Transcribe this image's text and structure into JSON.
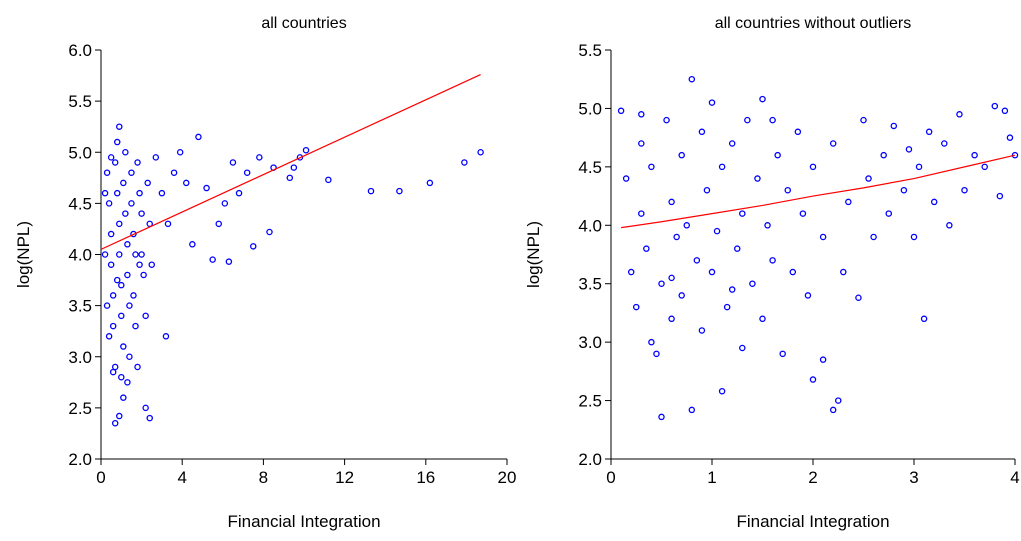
{
  "chart_data": [
    {
      "type": "scatter",
      "title": "all countries",
      "x_label": "Financial Integration",
      "y_label": "log(NPL)",
      "xlim": [
        0,
        20
      ],
      "xticks": [
        0,
        4,
        8,
        12,
        16,
        20
      ],
      "ylim": [
        2,
        6
      ],
      "yticks": [
        {
          "value": 2,
          "label": "2.0"
        },
        {
          "value": 2.5,
          "label": "2.5"
        },
        {
          "value": 3,
          "label": "3.0"
        },
        {
          "value": 3.5,
          "label": "3.5"
        },
        {
          "value": 4,
          "label": "4.0"
        },
        {
          "value": 4.5,
          "label": "4.5"
        },
        {
          "value": 5,
          "label": "5.0"
        },
        {
          "value": 5.5,
          "label": "5.5"
        },
        {
          "value": 6,
          "label": "6.0"
        }
      ],
      "series": [
        {
          "mode": "markers",
          "color": "#0000ff",
          "x": [
            0.3,
            0.4,
            0.5,
            0.5,
            0.6,
            0.6,
            0.7,
            0.7,
            0.8,
            0.8,
            0.9,
            0.9,
            1.0,
            1.0,
            1.1,
            1.1,
            1.2,
            1.2,
            1.3,
            1.3,
            1.4,
            1.4,
            1.5,
            1.5,
            1.6,
            1.6,
            1.7,
            1.8,
            1.8,
            1.9,
            2.0,
            2.1,
            2.2,
            2.3,
            2.4,
            0.4,
            0.6,
            0.9,
            1.0,
            1.3,
            0.2,
            0.3,
            0.2,
            0.7,
            0.9,
            1.1,
            2.2,
            2.4,
            3.2,
            2.5,
            2.7,
            3.0,
            3.3,
            3.6,
            3.9,
            4.2,
            4.5,
            4.8,
            5.2,
            5.5,
            5.8,
            6.3,
            6.1,
            6.5,
            6.8,
            7.2,
            7.5,
            7.8,
            8.3,
            8.5,
            9.3,
            9.5,
            9.8,
            10.1,
            11.2,
            13.3,
            14.7,
            16.2,
            17.9,
            18.7,
            1.7,
            1.9,
            2.0,
            0.5,
            0.8
          ],
          "values": [
            4.8,
            4.5,
            4.2,
            3.9,
            3.6,
            3.3,
            2.9,
            4.9,
            5.1,
            4.6,
            4.3,
            4.0,
            3.7,
            3.4,
            3.1,
            4.7,
            5.0,
            4.4,
            4.1,
            3.8,
            3.5,
            3.0,
            4.8,
            4.5,
            4.2,
            3.6,
            3.3,
            2.9,
            4.9,
            4.6,
            4.0,
            3.8,
            3.4,
            4.7,
            4.3,
            3.2,
            2.85,
            5.25,
            2.8,
            2.75,
            4.0,
            3.5,
            4.6,
            2.35,
            2.42,
            2.6,
            2.5,
            2.4,
            3.2,
            3.9,
            4.95,
            4.6,
            4.3,
            4.8,
            5.0,
            4.7,
            4.1,
            5.15,
            4.65,
            3.95,
            4.3,
            3.93,
            4.5,
            4.9,
            4.6,
            4.8,
            4.08,
            4.95,
            4.22,
            4.85,
            4.75,
            4.85,
            4.95,
            5.02,
            4.73,
            4.62,
            4.62,
            4.7,
            4.9,
            5.0,
            4.0,
            3.9,
            4.4,
            4.95,
            3.75
          ]
        },
        {
          "mode": "lines",
          "color": "#ff0000",
          "x": [
            0,
            18.7
          ],
          "values": [
            4.05,
            5.76
          ]
        }
      ]
    },
    {
      "type": "scatter",
      "title": "all countries without outliers",
      "x_label": "Financial Integration",
      "y_label": "log(NPL)",
      "xlim": [
        0,
        4
      ],
      "xticks": [
        0,
        1,
        2,
        3,
        4
      ],
      "ylim": [
        2,
        5.5
      ],
      "yticks": [
        {
          "value": 2,
          "label": "2.0"
        },
        {
          "value": 2.5,
          "label": "2.5"
        },
        {
          "value": 3,
          "label": "3.0"
        },
        {
          "value": 3.5,
          "label": "3.5"
        },
        {
          "value": 4,
          "label": "4.0"
        },
        {
          "value": 4.5,
          "label": "4.5"
        },
        {
          "value": 5,
          "label": "5.0"
        },
        {
          "value": 5.5,
          "label": "5.5"
        }
      ],
      "series": [
        {
          "mode": "markers",
          "color": "#0000ff",
          "x": [
            0.1,
            0.15,
            0.2,
            0.25,
            0.3,
            0.3,
            0.35,
            0.4,
            0.4,
            0.45,
            0.5,
            0.5,
            0.55,
            0.6,
            0.6,
            0.65,
            0.7,
            0.7,
            0.75,
            0.8,
            0.8,
            0.85,
            0.9,
            0.9,
            0.95,
            1.0,
            1.0,
            1.05,
            1.1,
            1.1,
            1.15,
            1.2,
            1.25,
            1.3,
            1.3,
            1.35,
            1.4,
            1.45,
            1.5,
            1.5,
            1.55,
            1.6,
            1.65,
            1.7,
            1.75,
            1.8,
            1.85,
            1.9,
            1.95,
            2.0,
            2.0,
            2.1,
            2.1,
            2.2,
            2.25,
            2.2,
            2.3,
            2.35,
            2.45,
            2.5,
            2.55,
            2.6,
            2.7,
            2.75,
            2.8,
            2.9,
            2.95,
            3.0,
            3.05,
            3.1,
            3.15,
            3.2,
            3.3,
            3.35,
            3.45,
            3.5,
            3.6,
            3.7,
            3.8,
            3.85,
            3.9,
            3.95,
            4.0,
            0.3,
            1.6,
            0.6,
            1.2
          ],
          "values": [
            4.98,
            4.4,
            3.6,
            3.3,
            4.1,
            4.7,
            3.8,
            3.0,
            4.5,
            2.9,
            2.36,
            3.5,
            4.9,
            4.2,
            3.2,
            3.9,
            4.6,
            3.4,
            4.0,
            5.25,
            2.42,
            3.7,
            4.8,
            3.1,
            4.3,
            3.6,
            5.05,
            3.95,
            2.58,
            4.5,
            3.3,
            4.7,
            3.8,
            4.1,
            2.95,
            4.9,
            3.5,
            4.4,
            3.2,
            5.08,
            4.0,
            3.7,
            4.6,
            2.9,
            4.3,
            3.6,
            4.8,
            4.1,
            3.4,
            2.68,
            4.5,
            2.85,
            3.9,
            2.42,
            2.5,
            4.7,
            3.6,
            4.2,
            3.38,
            4.9,
            4.4,
            3.9,
            4.6,
            4.1,
            4.85,
            4.3,
            4.65,
            3.9,
            4.5,
            3.2,
            4.8,
            4.2,
            4.7,
            4.0,
            4.95,
            4.3,
            4.6,
            4.5,
            5.02,
            4.25,
            4.98,
            4.75,
            4.6,
            4.95,
            4.9,
            3.55,
            3.45
          ]
        },
        {
          "mode": "lines",
          "color": "#ff0000",
          "x": [
            0.1,
            0.5,
            1,
            1.5,
            2,
            2.5,
            3,
            3.5,
            4
          ],
          "values": [
            3.98,
            4.03,
            4.1,
            4.17,
            4.25,
            4.32,
            4.4,
            4.5,
            4.6
          ]
        }
      ]
    }
  ]
}
